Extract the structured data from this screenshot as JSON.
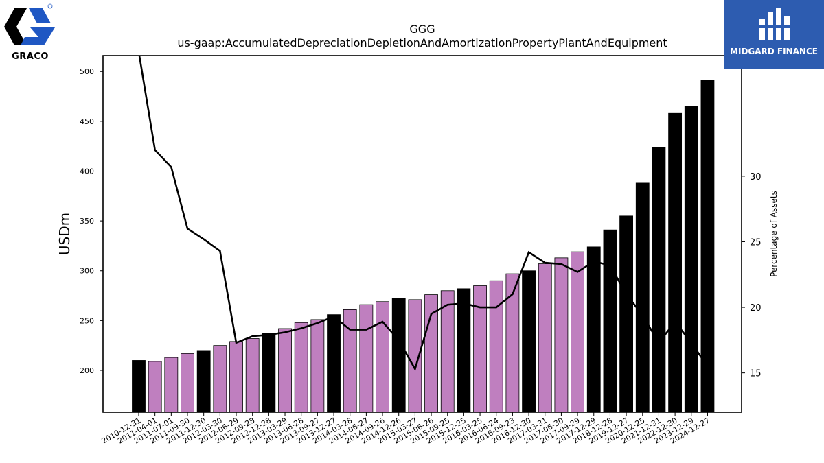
{
  "logos": {
    "left_text": "GRACO",
    "right_text": "MIDGARD FINANCE"
  },
  "colors": {
    "quarter_bar": "#bf7fbf",
    "year_end_bar": "#000000",
    "line": "#000000",
    "graco_blue": "#1f57c3",
    "midgard_blue": "#2d5cb0"
  },
  "chart_data": {
    "type": "bar",
    "title": "GGG",
    "subtitle": "us-gaap:AccumulatedDepreciationDepletionAndAmortizationPropertyPlantAndEquipment",
    "ylabel": "USDm",
    "y2label": "Percentage of Assets",
    "ylim": [
      158,
      516
    ],
    "y2lim": [
      12,
      39.2
    ],
    "yticks": [
      200,
      250,
      300,
      350,
      400,
      450,
      500
    ],
    "y2ticks": [
      15,
      20,
      25,
      30
    ],
    "categories": [
      "2010-12-31",
      "2011-04-01",
      "2011-07-01",
      "2011-09-30",
      "2011-12-30",
      "2012-03-30",
      "2012-06-29",
      "2012-09-28",
      "2012-12-28",
      "2013-03-29",
      "2013-06-28",
      "2013-09-27",
      "2013-12-27",
      "2014-03-28",
      "2014-06-27",
      "2014-09-26",
      "2014-12-26",
      "2015-03-27",
      "2015-06-26",
      "2015-09-25",
      "2015-12-25",
      "2016-03-25",
      "2016-06-24",
      "2016-09-23",
      "2016-12-30",
      "2017-03-31",
      "2017-06-30",
      "2017-09-29",
      "2017-12-29",
      "2018-12-28",
      "2019-12-27",
      "2020-12-25",
      "2021-12-31",
      "2022-12-30",
      "2023-12-29",
      "2024-12-27"
    ],
    "series": [
      {
        "values": [
          210,
          209,
          213,
          217,
          220,
          225,
          229,
          232,
          237,
          242,
          248,
          251,
          256,
          261,
          266,
          269,
          272,
          271,
          276,
          280,
          282,
          285,
          290,
          297,
          300,
          307,
          313,
          319,
          324,
          341,
          355,
          388,
          424,
          458,
          465,
          491
        ],
        "year_end": [
          true,
          false,
          false,
          false,
          true,
          false,
          false,
          false,
          true,
          false,
          false,
          false,
          true,
          false,
          false,
          false,
          true,
          false,
          false,
          false,
          true,
          false,
          false,
          false,
          true,
          false,
          false,
          false,
          true,
          true,
          true,
          true,
          true,
          true,
          true,
          true
        ]
      },
      {
        "axis": "right",
        "type": "line",
        "values": [
          39.5,
          32.0,
          30.7,
          26.0,
          25.2,
          24.3,
          17.3,
          17.8,
          17.9,
          18.1,
          18.4,
          18.8,
          19.3,
          18.3,
          18.3,
          18.9,
          17.5,
          15.3,
          19.5,
          20.2,
          20.3,
          20.0,
          20.0,
          21.0,
          24.2,
          23.4,
          23.3,
          22.7,
          23.5,
          23.2,
          21.0,
          19.4,
          17.3,
          18.9,
          17.3,
          15.5
        ]
      }
    ]
  }
}
